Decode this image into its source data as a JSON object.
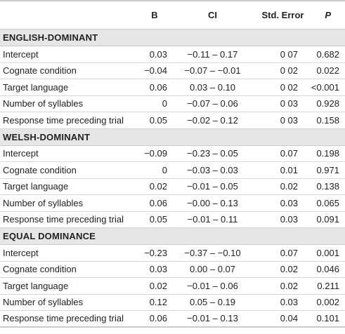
{
  "columns": [
    "",
    "B",
    "CI",
    "Std. Error",
    "P"
  ],
  "groups": [
    {
      "title": "ENGLISH-DOMINANT",
      "rows": [
        [
          "Intercept",
          "0.03",
          "−0.11 – 0.17",
          "0 07",
          "0.682"
        ],
        [
          "Cognate condition",
          "−0.04",
          "−0.07 – −0.01",
          "0 02",
          "0.022"
        ],
        [
          "Target language",
          "0.06",
          "0.03 – 0.10",
          "0 02",
          "<0.001"
        ],
        [
          "Number of syllables",
          "0",
          "−0.07 – 0.06",
          "0 03",
          "0.928"
        ],
        [
          "Response time preceding trial",
          "0.05",
          "−0.02 – 0.12",
          "0 03",
          "0.158"
        ]
      ]
    },
    {
      "title": "WELSH-DOMINANT",
      "rows": [
        [
          "Intercept",
          "−0.09",
          "−0.23 – 0.05",
          "0.07",
          "0.198"
        ],
        [
          "Cognate condition",
          "0",
          "−0.03 – 0.03",
          "0.01",
          "0.971"
        ],
        [
          "Target language",
          "0.02",
          "−0.01 – 0.05",
          "0.02",
          "0.138"
        ],
        [
          "Number of syllables",
          "0.06",
          "−0.00 – 0.13",
          "0.03",
          "0.065"
        ],
        [
          "Response time preceding trial",
          "0.05",
          "−0.01 – 0.11",
          "0.03",
          "0.091"
        ]
      ]
    },
    {
      "title": "EQUAL DOMINANCE",
      "rows": [
        [
          "Intercept",
          "−0.23",
          "−0.37 – −0.10",
          "0.07",
          "0.001"
        ],
        [
          "Cognate condition",
          "0.03",
          "0.00 – 0.07",
          "0.02",
          "0.046"
        ],
        [
          "Target language",
          "0.02",
          "−0.01 – 0.06",
          "0.02",
          "0.211"
        ],
        [
          "Number of syllables",
          "0.12",
          "0.05 – 0.19",
          "0.03",
          "0.002"
        ],
        [
          "Response time preceding trial",
          "0.06",
          "−0.01 – 0.13",
          "0.04",
          "0.101"
        ]
      ]
    }
  ]
}
